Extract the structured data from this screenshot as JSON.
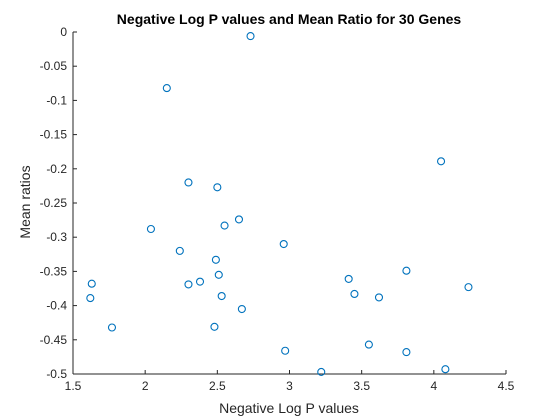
{
  "chart_data": {
    "type": "scatter",
    "title": "Negative Log P values and Mean Ratio for 30 Genes",
    "xlabel": "Negative Log P values",
    "ylabel": "Mean ratios",
    "xlim": [
      1.5,
      4.5
    ],
    "ylim": [
      -0.5,
      0
    ],
    "xticks": [
      1.5,
      2,
      2.5,
      3,
      3.5,
      4,
      4.5
    ],
    "xtick_labels": [
      "1.5",
      "2",
      "2.5",
      "3",
      "3.5",
      "4",
      "4.5"
    ],
    "yticks": [
      0,
      -0.05,
      -0.1,
      -0.15,
      -0.2,
      -0.25,
      -0.3,
      -0.35,
      -0.4,
      -0.45,
      -0.5
    ],
    "ytick_labels": [
      "0",
      "-0.05",
      "-0.1",
      "-0.15",
      "-0.2",
      "-0.25",
      "-0.3",
      "-0.35",
      "-0.4",
      "-0.45",
      "-0.5"
    ],
    "grid": false,
    "marker": "circle-open",
    "color": "#0072BD",
    "points": [
      {
        "x": 1.63,
        "y": -0.368
      },
      {
        "x": 1.62,
        "y": -0.389
      },
      {
        "x": 1.77,
        "y": -0.432
      },
      {
        "x": 2.04,
        "y": -0.288
      },
      {
        "x": 2.15,
        "y": -0.082
      },
      {
        "x": 2.24,
        "y": -0.32
      },
      {
        "x": 2.3,
        "y": -0.22
      },
      {
        "x": 2.3,
        "y": -0.369
      },
      {
        "x": 2.38,
        "y": -0.365
      },
      {
        "x": 2.48,
        "y": -0.431
      },
      {
        "x": 2.49,
        "y": -0.333
      },
      {
        "x": 2.5,
        "y": -0.227
      },
      {
        "x": 2.51,
        "y": -0.355
      },
      {
        "x": 2.53,
        "y": -0.386
      },
      {
        "x": 2.55,
        "y": -0.283
      },
      {
        "x": 2.65,
        "y": -0.274
      },
      {
        "x": 2.67,
        "y": -0.405
      },
      {
        "x": 2.73,
        "y": -0.006
      },
      {
        "x": 2.96,
        "y": -0.31
      },
      {
        "x": 2.97,
        "y": -0.466
      },
      {
        "x": 3.22,
        "y": -0.497
      },
      {
        "x": 3.41,
        "y": -0.361
      },
      {
        "x": 3.45,
        "y": -0.383
      },
      {
        "x": 3.55,
        "y": -0.457
      },
      {
        "x": 3.62,
        "y": -0.388
      },
      {
        "x": 3.81,
        "y": -0.349
      },
      {
        "x": 3.81,
        "y": -0.468
      },
      {
        "x": 4.05,
        "y": -0.189
      },
      {
        "x": 4.08,
        "y": -0.493
      },
      {
        "x": 4.24,
        "y": -0.373
      }
    ]
  }
}
